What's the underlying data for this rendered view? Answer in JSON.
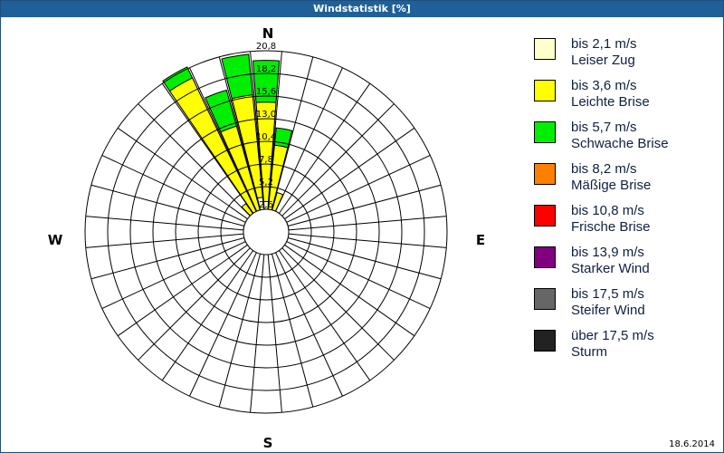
{
  "title": "Windstatistik [%]",
  "date": "18.6.2014",
  "chart_data": {
    "type": "wind-rose",
    "title": "Windstatistik [%]",
    "directions": {
      "n": "N",
      "e": "E",
      "s": "S",
      "w": "W"
    },
    "ring_labels": [
      "2,6",
      "5,2",
      "7,8",
      "10,4",
      "13,0",
      "15,6",
      "18,2",
      "20,8"
    ],
    "rmax": 20.8,
    "sector_width_deg": 10,
    "classes": [
      {
        "range": "bis 2,1 m/s",
        "name": "Leiser Zug",
        "color": "#ffffcc"
      },
      {
        "range": "bis 3,6 m/s",
        "name": "Leichte Brise",
        "color": "#ffff00"
      },
      {
        "range": "bis 5,7 m/s",
        "name": "Schwache Brise",
        "color": "#00ee00"
      },
      {
        "range": "bis 8,2 m/s",
        "name": "Mäßige Brise",
        "color": "#ff8000"
      },
      {
        "range": "bis 10,8 m/s",
        "name": "Frische Brise",
        "color": "#ff0000"
      },
      {
        "range": "bis 13,9 m/s",
        "name": "Starker Wind",
        "color": "#800080"
      },
      {
        "range": "bis 17,5 m/s",
        "name": "Steifer Wind",
        "color": "#666666"
      },
      {
        "range": "über 17,5 m/s",
        "name": "Sturm",
        "color": "#222222"
      }
    ],
    "sectors": [
      {
        "dir": 0,
        "values": [
          3.5,
          11.4,
          4.8
        ]
      },
      {
        "dir": 10,
        "values": [
          1.0,
          9.0,
          2.0
        ]
      },
      {
        "dir": 20,
        "values": [
          1.0,
          3.7,
          0
        ]
      },
      {
        "dir": 320,
        "values": [
          1.0,
          3.0,
          0
        ]
      },
      {
        "dir": 330,
        "values": [
          1.5,
          18.1,
          1.4
        ]
      },
      {
        "dir": 340,
        "values": [
          1.5,
          11.1,
          4.3
        ]
      },
      {
        "dir": 350,
        "values": [
          4.0,
          11.8,
          4.7
        ]
      }
    ]
  }
}
